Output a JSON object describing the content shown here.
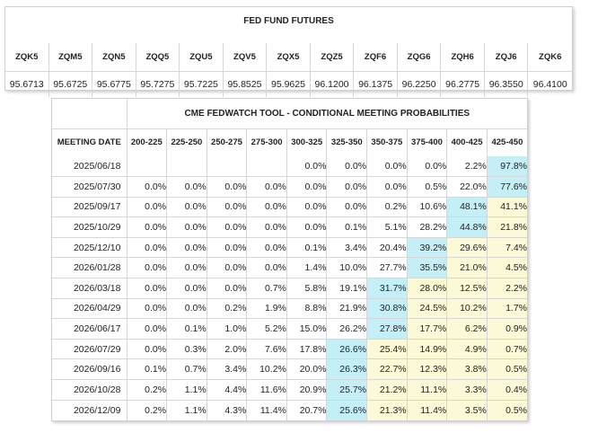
{
  "futures": {
    "title": "FED FUND FUTURES",
    "contracts": [
      {
        "code": "ZQK5",
        "price": "95.6713"
      },
      {
        "code": "ZQM5",
        "price": "95.6725"
      },
      {
        "code": "ZQN5",
        "price": "95.6775"
      },
      {
        "code": "ZQQ5",
        "price": "95.7275"
      },
      {
        "code": "ZQU5",
        "price": "95.7225"
      },
      {
        "code": "ZQV5",
        "price": "95.8525"
      },
      {
        "code": "ZQX5",
        "price": "95.9625"
      },
      {
        "code": "ZQZ5",
        "price": "96.1200"
      },
      {
        "code": "ZQF6",
        "price": "96.1375"
      },
      {
        "code": "ZQG6",
        "price": "96.2250"
      },
      {
        "code": "ZQH6",
        "price": "96.2775"
      },
      {
        "code": "ZQJ6",
        "price": "96.3550"
      },
      {
        "code": "ZQK6",
        "price": "96.4100"
      }
    ]
  },
  "fedwatch": {
    "title": "CME FEDWATCH TOOL - CONDITIONAL MEETING PROBABILITIES",
    "date_header": "MEETING DATE",
    "ranges": [
      "200-225",
      "225-250",
      "250-275",
      "275-300",
      "300-325",
      "325-350",
      "350-375",
      "375-400",
      "400-425",
      "425-450"
    ],
    "highlight_colors": {
      "most_likely": "#c5eff6",
      "above_most_likely": "#fbf9d6"
    },
    "rows": [
      {
        "date": "2025/06/18",
        "probs": [
          "",
          "",
          "",
          "",
          "0.0%",
          "0.0%",
          "0.0%",
          "0.0%",
          "2.2%",
          "97.8%"
        ],
        "max_index": 9
      },
      {
        "date": "2025/07/30",
        "probs": [
          "0.0%",
          "0.0%",
          "0.0%",
          "0.0%",
          "0.0%",
          "0.0%",
          "0.0%",
          "0.5%",
          "22.0%",
          "77.6%"
        ],
        "max_index": 9
      },
      {
        "date": "2025/09/17",
        "probs": [
          "0.0%",
          "0.0%",
          "0.0%",
          "0.0%",
          "0.0%",
          "0.0%",
          "0.2%",
          "10.6%",
          "48.1%",
          "41.1%"
        ],
        "max_index": 8
      },
      {
        "date": "2025/10/29",
        "probs": [
          "0.0%",
          "0.0%",
          "0.0%",
          "0.0%",
          "0.0%",
          "0.1%",
          "5.1%",
          "28.2%",
          "44.8%",
          "21.8%"
        ],
        "max_index": 8
      },
      {
        "date": "2025/12/10",
        "probs": [
          "0.0%",
          "0.0%",
          "0.0%",
          "0.0%",
          "0.1%",
          "3.4%",
          "20.4%",
          "39.2%",
          "29.6%",
          "7.4%"
        ],
        "max_index": 7
      },
      {
        "date": "2026/01/28",
        "probs": [
          "0.0%",
          "0.0%",
          "0.0%",
          "0.0%",
          "1.4%",
          "10.0%",
          "27.7%",
          "35.5%",
          "21.0%",
          "4.5%"
        ],
        "max_index": 7
      },
      {
        "date": "2026/03/18",
        "probs": [
          "0.0%",
          "0.0%",
          "0.0%",
          "0.7%",
          "5.8%",
          "19.1%",
          "31.7%",
          "28.0%",
          "12.5%",
          "2.2%"
        ],
        "max_index": 6
      },
      {
        "date": "2026/04/29",
        "probs": [
          "0.0%",
          "0.0%",
          "0.2%",
          "1.9%",
          "8.8%",
          "21.9%",
          "30.8%",
          "24.5%",
          "10.2%",
          "1.7%"
        ],
        "max_index": 6
      },
      {
        "date": "2026/06/17",
        "probs": [
          "0.0%",
          "0.1%",
          "1.0%",
          "5.2%",
          "15.0%",
          "26.2%",
          "27.8%",
          "17.7%",
          "6.2%",
          "0.9%"
        ],
        "max_index": 6
      },
      {
        "date": "2026/07/29",
        "probs": [
          "0.0%",
          "0.3%",
          "2.0%",
          "7.6%",
          "17.8%",
          "26.6%",
          "25.4%",
          "14.9%",
          "4.9%",
          "0.7%"
        ],
        "max_index": 5
      },
      {
        "date": "2026/09/16",
        "probs": [
          "0.1%",
          "0.7%",
          "3.4%",
          "10.2%",
          "20.0%",
          "26.3%",
          "22.7%",
          "12.3%",
          "3.8%",
          "0.5%"
        ],
        "max_index": 5
      },
      {
        "date": "2026/10/28",
        "probs": [
          "0.2%",
          "1.1%",
          "4.4%",
          "11.6%",
          "20.9%",
          "25.7%",
          "21.2%",
          "11.1%",
          "3.3%",
          "0.4%"
        ],
        "max_index": 5
      },
      {
        "date": "2026/12/09",
        "probs": [
          "0.2%",
          "1.1%",
          "4.3%",
          "11.4%",
          "20.7%",
          "25.6%",
          "21.3%",
          "11.4%",
          "3.5%",
          "0.5%"
        ],
        "max_index": 5
      }
    ]
  }
}
